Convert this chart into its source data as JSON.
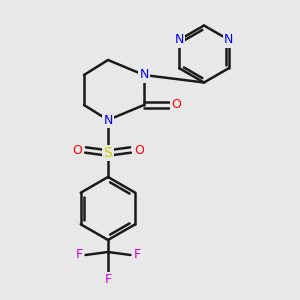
{
  "bg_color": "#e8e8e8",
  "bond_color": "#1a1a1a",
  "N_color": "#0000ff",
  "O_color": "#ff0000",
  "S_color": "#cccc00",
  "F_color": "#cc00cc",
  "line_width": 1.8,
  "figsize": [
    3.0,
    3.0
  ],
  "dpi": 100,
  "xlim": [
    0,
    10
  ],
  "ylim": [
    0,
    10
  ]
}
